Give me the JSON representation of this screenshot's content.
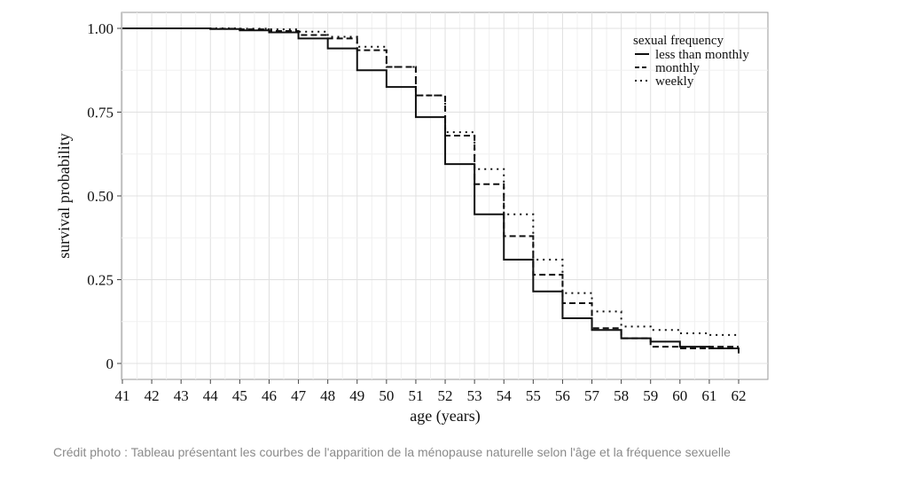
{
  "chart_data": {
    "type": "line",
    "step": true,
    "xlabel": "age (years)",
    "ylabel": "survival probability",
    "xlim": [
      41,
      62
    ],
    "ylim": [
      0,
      1
    ],
    "x_ticks": [
      "41",
      "42",
      "43",
      "44",
      "45",
      "46",
      "47",
      "48",
      "49",
      "50",
      "51",
      "52",
      "53",
      "54",
      "55",
      "56",
      "57",
      "58",
      "59",
      "60",
      "61",
      "62"
    ],
    "y_ticks": [
      {
        "value": 1.0,
        "label": "1.00"
      },
      {
        "value": 0.75,
        "label": "0.75"
      },
      {
        "value": 0.5,
        "label": "0.50"
      },
      {
        "value": 0.25,
        "label": "0.25"
      },
      {
        "value": 0,
        "label": "0"
      }
    ],
    "grid": true,
    "legend": {
      "title": "sexual frequency",
      "position": "top-right"
    },
    "series": [
      {
        "name": "less than monthly",
        "style": "solid",
        "x": [
          41,
          44,
          45,
          46,
          47,
          48,
          49,
          50,
          51,
          52,
          53,
          54,
          55,
          56,
          57,
          58,
          59,
          60,
          61,
          62
        ],
        "y": [
          1.0,
          0.998,
          0.994,
          0.988,
          0.97,
          0.94,
          0.875,
          0.825,
          0.735,
          0.595,
          0.445,
          0.31,
          0.215,
          0.135,
          0.1,
          0.075,
          0.065,
          0.05,
          0.045,
          0.03
        ]
      },
      {
        "name": "monthly",
        "style": "dashed",
        "x": [
          41,
          44,
          45,
          46,
          47,
          48,
          49,
          50,
          51,
          52,
          53,
          54,
          55,
          56,
          57,
          58,
          59,
          60,
          61,
          62
        ],
        "y": [
          1.0,
          0.999,
          0.997,
          0.992,
          0.98,
          0.97,
          0.935,
          0.885,
          0.8,
          0.68,
          0.535,
          0.38,
          0.265,
          0.18,
          0.105,
          0.075,
          0.05,
          0.045,
          0.05,
          0.05
        ]
      },
      {
        "name": "weekly",
        "style": "dotted",
        "x": [
          41,
          44,
          45,
          46,
          47,
          48,
          49,
          50,
          51,
          52,
          53,
          54,
          55,
          56,
          57,
          58,
          59,
          60,
          61,
          62
        ],
        "y": [
          1.0,
          1.0,
          0.999,
          0.997,
          0.99,
          0.975,
          0.945,
          0.885,
          0.8,
          0.69,
          0.58,
          0.445,
          0.31,
          0.21,
          0.155,
          0.11,
          0.1,
          0.09,
          0.085,
          0.085
        ]
      }
    ]
  },
  "caption": "Crédit photo : Tableau présentant les courbes de l'apparition de la ménopause naturelle selon l'âge et la fréquence sexuelle"
}
